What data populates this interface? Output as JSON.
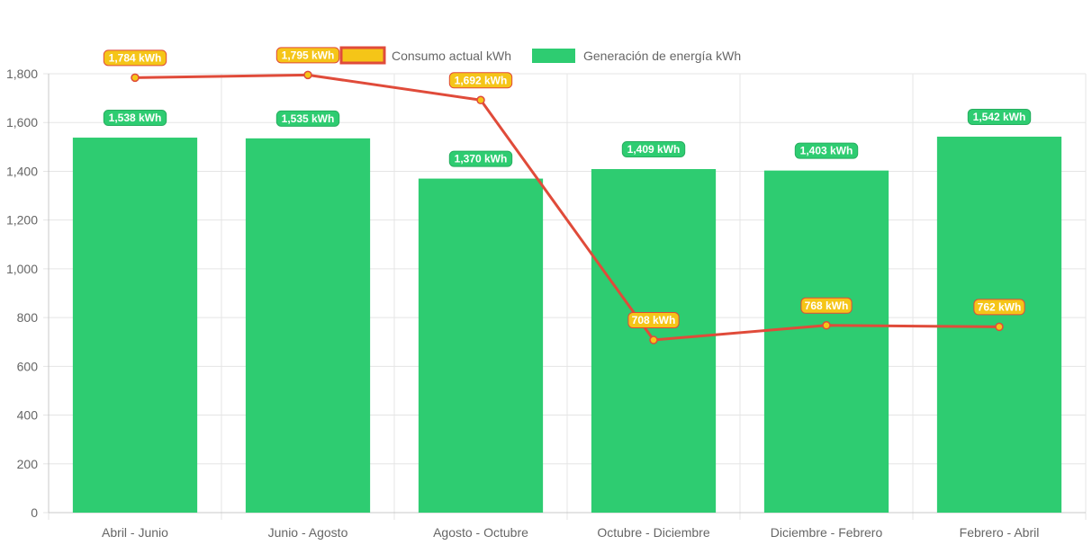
{
  "chart_data": {
    "type": "bar",
    "title": "",
    "xlabel": "",
    "ylabel": "",
    "ylim": [
      0,
      1800
    ],
    "yticks": [
      0,
      200,
      400,
      600,
      800,
      1000,
      1200,
      1400,
      1600,
      1800
    ],
    "ytick_labels": [
      "0",
      "200",
      "400",
      "600",
      "800",
      "1,000",
      "1,200",
      "1,400",
      "1,600",
      "1,800"
    ],
    "categories": [
      "Abril - Junio",
      "Junio - Agosto",
      "Agosto - Octubre",
      "Octubre - Diciembre",
      "Diciembre - Febrero",
      "Febrero - Abril"
    ],
    "grid": true,
    "legend_position": "top",
    "series": [
      {
        "name": "Consumo actual kWh",
        "type": "line",
        "values": [
          1784,
          1795,
          1692,
          708,
          768,
          762
        ],
        "labels": [
          "1,784 kWh",
          "1,795 kWh",
          "1,692 kWh",
          "708 kWh",
          "768 kWh",
          "762 kWh"
        ],
        "line_color": "#e04b3a",
        "fill_color": "#f5c518"
      },
      {
        "name": "Generación de energía kWh",
        "type": "bar",
        "values": [
          1538,
          1535,
          1370,
          1409,
          1403,
          1542
        ],
        "labels": [
          "1,538 kWh",
          "1,535 kWh",
          "1,370 kWh",
          "1,409 kWh",
          "1,403 kWh",
          "1,542 kWh"
        ],
        "color": "#2ecc71"
      }
    ]
  }
}
